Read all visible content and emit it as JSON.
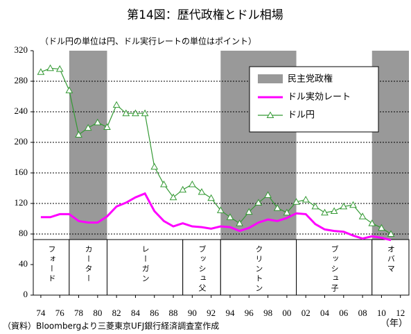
{
  "chart_data": {
    "type": "line",
    "title": "第14図：歴代政権とドル相場",
    "subtitle": "（ドル円の単位は円、ドル実行レートの単位はポイント）",
    "x_unit": "（年）",
    "source": "（資料）Bloombergより三菱東京UFJ銀行経済調査室作成",
    "x": [
      1974,
      1975,
      1976,
      1977,
      1978,
      1979,
      1980,
      1981,
      1982,
      1983,
      1984,
      1985,
      1986,
      1987,
      1988,
      1989,
      1990,
      1991,
      1992,
      1993,
      1994,
      1995,
      1996,
      1997,
      1998,
      1999,
      2000,
      2001,
      2002,
      2003,
      2004,
      2005,
      2006,
      2007,
      2008,
      2009,
      2010,
      2011
    ],
    "series": [
      {
        "name": "ドル実効レート",
        "color": "#ff00ff",
        "marker": "none",
        "values": [
          102,
          102,
          106,
          106,
          97,
          95,
          95,
          103,
          116,
          121,
          128,
          133,
          110,
          97,
          90,
          94,
          90,
          89,
          87,
          90,
          89,
          84,
          88,
          95,
          99,
          97,
          101,
          107,
          106,
          93,
          86,
          84,
          83,
          78,
          74,
          77,
          75,
          72
        ]
      },
      {
        "name": "ドル円",
        "color": "#339933",
        "marker": "triangle",
        "values": [
          292,
          297,
          296,
          268,
          210,
          219,
          226,
          220,
          249,
          238,
          238,
          238,
          168,
          145,
          128,
          138,
          145,
          135,
          127,
          111,
          102,
          94,
          109,
          121,
          131,
          114,
          108,
          122,
          125,
          116,
          108,
          110,
          116,
          118,
          103,
          94,
          88,
          80
        ]
      }
    ],
    "administrations": [
      "フォード",
      "カーター",
      "レーガン",
      "ブッシュ父",
      "クリントン",
      "ブッシュ子",
      "オバマ"
    ],
    "administration_breaks": [
      1977,
      1981,
      1989,
      1993,
      2001,
      2009
    ],
    "shaded": {
      "name": "民主党政権",
      "color": "#999999",
      "administrations": [
        1,
        4,
        6
      ]
    },
    "xlim": [
      1973.2,
      2012.9
    ],
    "xticks": [
      {
        "value": 1974,
        "label": "74"
      },
      {
        "value": 1976,
        "label": "76"
      },
      {
        "value": 1978,
        "label": "78"
      },
      {
        "value": 1980,
        "label": "80"
      },
      {
        "value": 1982,
        "label": "82"
      },
      {
        "value": 1984,
        "label": "84"
      },
      {
        "value": 1986,
        "label": "86"
      },
      {
        "value": 1988,
        "label": "88"
      },
      {
        "value": 1990,
        "label": "90"
      },
      {
        "value": 1992,
        "label": "92"
      },
      {
        "value": 1994,
        "label": "94"
      },
      {
        "value": 1996,
        "label": "96"
      },
      {
        "value": 1998,
        "label": "98"
      },
      {
        "value": 2000,
        "label": "00"
      },
      {
        "value": 2002,
        "label": "02"
      },
      {
        "value": 2004,
        "label": "04"
      },
      {
        "value": 2006,
        "label": "06"
      },
      {
        "value": 2008,
        "label": "08"
      },
      {
        "value": 2010,
        "label": "10"
      },
      {
        "value": 2012,
        "label": "12"
      }
    ],
    "ylim": [
      0,
      320
    ],
    "yticks": [
      0,
      40,
      80,
      120,
      160,
      200,
      240,
      280,
      320
    ],
    "grid": true
  }
}
